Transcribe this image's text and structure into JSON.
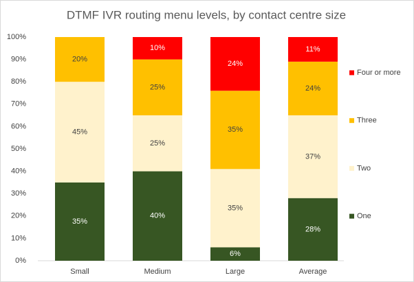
{
  "chart_data": {
    "type": "stacked_bar",
    "title": "DTMF IVR routing menu levels, by contact centre size",
    "categories": [
      "Small",
      "Medium",
      "Large",
      "Average"
    ],
    "series": [
      {
        "name": "One",
        "color": "#375623",
        "values": [
          35,
          40,
          6,
          28
        ],
        "value_labels": [
          "35%",
          "40%",
          "6%",
          "28%"
        ]
      },
      {
        "name": "Two",
        "color": "#fff2cc",
        "values": [
          45,
          25,
          35,
          37
        ],
        "value_labels": [
          "45%",
          "25%",
          "35%",
          "37%"
        ]
      },
      {
        "name": "Three",
        "color": "#ffc000",
        "values": [
          20,
          25,
          35,
          24
        ],
        "value_labels": [
          "20%",
          "25%",
          "35%",
          "24%"
        ]
      },
      {
        "name": "Four or more",
        "color": "#ff0000",
        "values": [
          0,
          10,
          24,
          11
        ],
        "value_labels": [
          null,
          "10%",
          "24%",
          "11%"
        ]
      }
    ],
    "ylim": [
      0,
      100
    ],
    "yticks": [
      {
        "value": 0,
        "label": "0%"
      },
      {
        "value": 10,
        "label": "10%"
      },
      {
        "value": 20,
        "label": "20%"
      },
      {
        "value": 30,
        "label": "30%"
      },
      {
        "value": 40,
        "label": "40%"
      },
      {
        "value": 50,
        "label": "50%"
      },
      {
        "value": 60,
        "label": "60%"
      },
      {
        "value": 70,
        "label": "70%"
      },
      {
        "value": 80,
        "label": "80%"
      },
      {
        "value": 90,
        "label": "90%"
      },
      {
        "value": 100,
        "label": "100%"
      }
    ],
    "grid": false,
    "legend": "right"
  }
}
